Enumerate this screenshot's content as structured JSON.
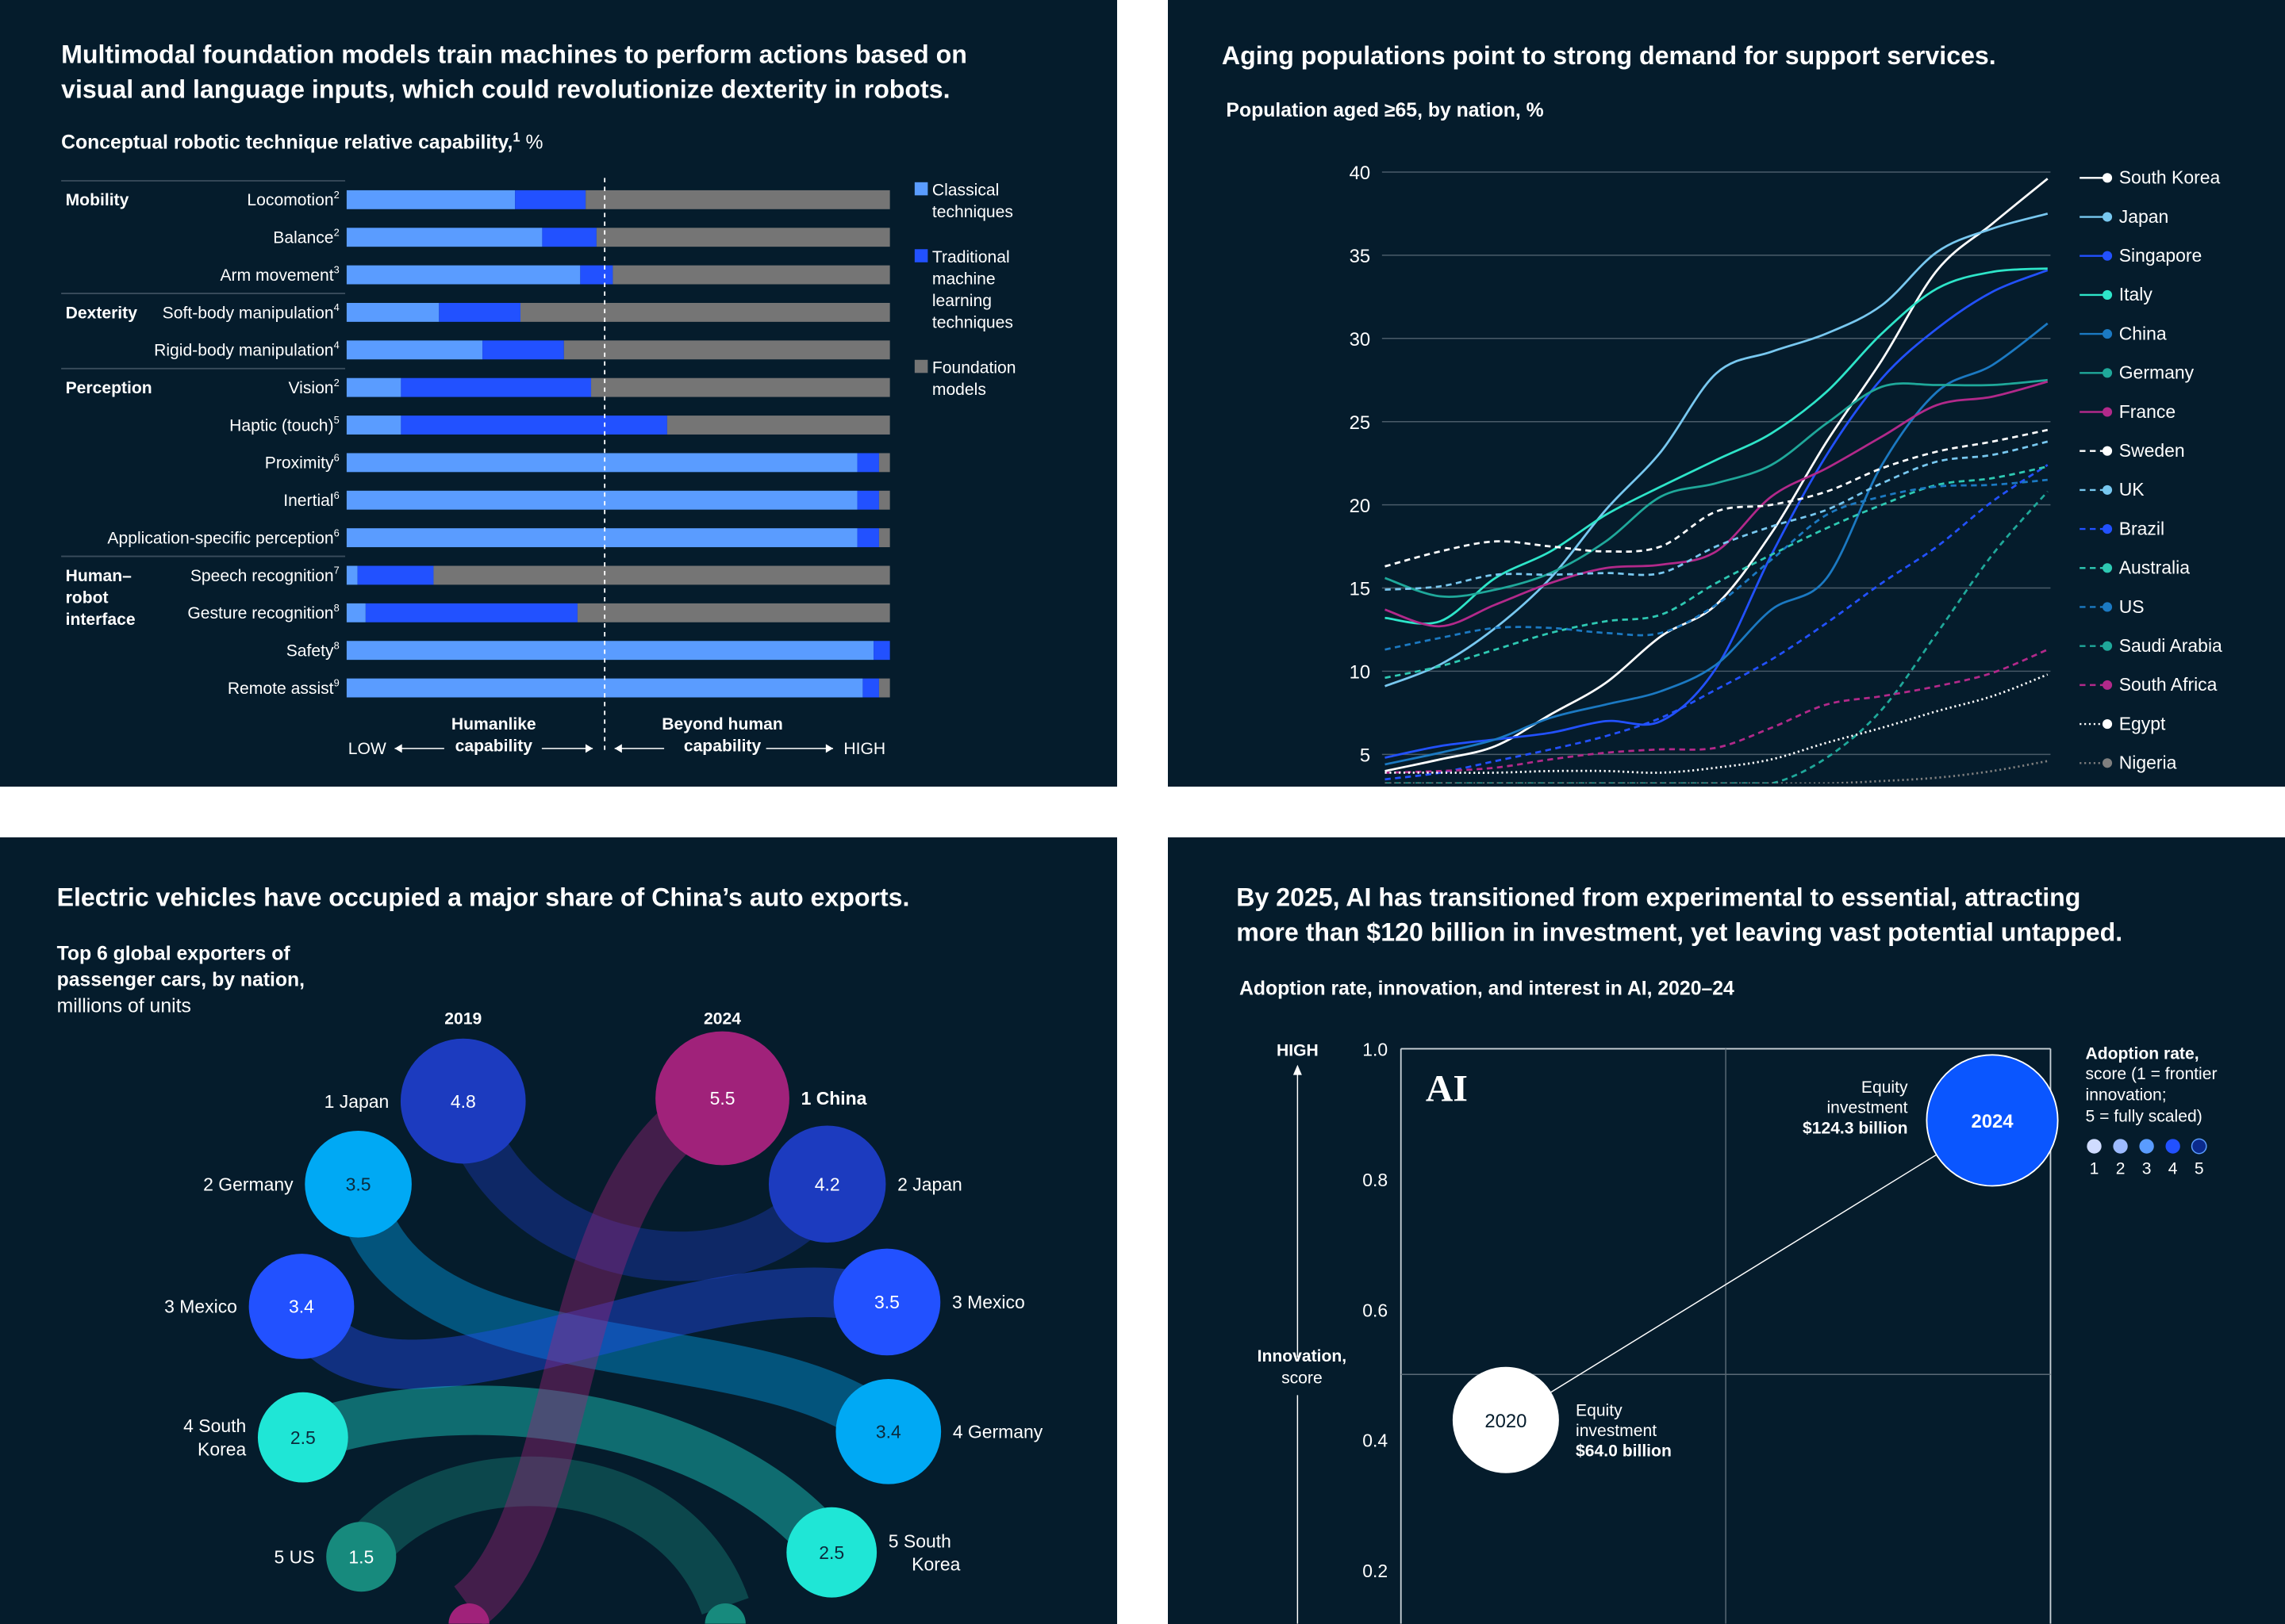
{
  "colors": {
    "background": "#051c2c",
    "classical": "#5a9cff",
    "traditional_ml": "#2251ff",
    "foundation": "#757575"
  },
  "chart_data": [
    {
      "type": "bar",
      "stacked": true,
      "orientation": "horizontal",
      "title": "Multimodal foundation models train machines to perform actions based on visual and language inputs, which could revolutionize dexterity in robots.",
      "title_lines": [
        "Multimodal foundation models train machines to perform actions based on",
        "visual and language inputs, which could revolutionize dexterity in robots."
      ],
      "subtitle": "Conceptual robotic technique relative capability,",
      "subtitle_note": "1",
      "subtitle_unit": " %",
      "legend": [
        {
          "key": "classical",
          "lines": [
            "Classical",
            "techniques"
          ]
        },
        {
          "key": "traditional_ml",
          "lines": [
            "Traditional",
            "machine",
            "learning",
            "techniques"
          ]
        },
        {
          "key": "foundation",
          "lines": [
            "Foundation",
            "models"
          ]
        }
      ],
      "groups": [
        {
          "name": "Mobility",
          "lines": [
            "Mobility"
          ]
        },
        {
          "name": "Dexterity",
          "lines": [
            "Dexterity"
          ]
        },
        {
          "name": "Perception",
          "lines": [
            "Perception"
          ]
        },
        {
          "name": "Human–robot interface",
          "lines": [
            "Human–",
            "robot",
            "interface"
          ]
        }
      ],
      "rows": [
        {
          "group": "Mobility",
          "label": "Locomotion",
          "note": "2",
          "classical": 31,
          "traditional_ml": 13,
          "foundation": 56
        },
        {
          "group": "Mobility",
          "label": "Balance",
          "note": "2",
          "classical": 36,
          "traditional_ml": 10,
          "foundation": 54
        },
        {
          "group": "Mobility",
          "label": "Arm movement",
          "note": "3",
          "classical": 43,
          "traditional_ml": 6,
          "foundation": 51
        },
        {
          "group": "Dexterity",
          "label": "Soft-body manipulation",
          "note": "4",
          "classical": 17,
          "traditional_ml": 15,
          "foundation": 68
        },
        {
          "group": "Dexterity",
          "label": "Rigid-body manipulation",
          "note": "4",
          "classical": 25,
          "traditional_ml": 15,
          "foundation": 60
        },
        {
          "group": "Perception",
          "label": "Vision",
          "note": "2",
          "classical": 10,
          "traditional_ml": 35,
          "foundation": 55
        },
        {
          "group": "Perception",
          "label": "Haptic (touch)",
          "note": "5",
          "classical": 10,
          "traditional_ml": 49,
          "foundation": 41
        },
        {
          "group": "Perception",
          "label": "Proximity",
          "note": "6",
          "classical": 94,
          "traditional_ml": 4,
          "foundation": 2
        },
        {
          "group": "Perception",
          "label": "Inertial",
          "note": "6",
          "classical": 94,
          "traditional_ml": 4,
          "foundation": 2
        },
        {
          "group": "Perception",
          "label": "Application-specific perception",
          "note": "6",
          "classical": 94,
          "traditional_ml": 4,
          "foundation": 2
        },
        {
          "group": "Human–robot interface",
          "label": "Speech recognition",
          "note": "7",
          "classical": 2,
          "traditional_ml": 14,
          "foundation": 84
        },
        {
          "group": "Human–robot interface",
          "label": "Gesture recognition",
          "note": "8",
          "classical": 3.5,
          "traditional_ml": 39,
          "foundation": 57.5
        },
        {
          "group": "Human–robot interface",
          "label": "Safety",
          "note": "8",
          "classical": 97,
          "traditional_ml": 3,
          "foundation": 0
        },
        {
          "group": "Human–robot interface",
          "label": "Remote assist",
          "note": "9",
          "classical": 95,
          "traditional_ml": 3,
          "foundation": 2
        }
      ],
      "humanlike_threshold": 47.5,
      "axis": {
        "low": "LOW",
        "high": "HIGH",
        "left_label": [
          "Humanlike",
          "capability"
        ],
        "right_label": [
          "Beyond human",
          "capability"
        ]
      },
      "xlim": [
        0,
        100
      ]
    },
    {
      "type": "line",
      "title": "Aging populations point to strong demand for support services.",
      "subtitle": "Population aged ≥65, by nation, %",
      "ylim": [
        3,
        40
      ],
      "yticks": [
        5,
        10,
        15,
        20,
        25,
        30,
        35,
        40
      ],
      "grid": true,
      "legend_position": "right",
      "series": [
        {
          "name": "South Korea",
          "color": "#ffffff",
          "dash": "solid",
          "values": [
            4.0,
            4.7,
            5.5,
            7.4,
            9.3,
            12.1,
            14.0,
            18.3,
            23.8,
            28.7,
            34.1,
            36.9,
            39.6
          ]
        },
        {
          "name": "Japan",
          "color": "#78c8f0",
          "dash": "solid",
          "values": [
            9.1,
            10.4,
            12.6,
            15.6,
            19.7,
            23.2,
            27.9,
            29.2,
            30.3,
            32.0,
            35.2,
            36.6,
            37.5
          ]
        },
        {
          "name": "Singapore",
          "color": "#2251ff",
          "dash": "solid",
          "values": [
            4.8,
            5.5,
            5.9,
            6.3,
            7.0,
            7.0,
            10.2,
            17.0,
            23.0,
            27.6,
            30.6,
            32.8,
            34.1
          ]
        },
        {
          "name": "Italy",
          "color": "#2ee5c9",
          "dash": "solid",
          "values": [
            13.2,
            13.0,
            15.6,
            17.2,
            19.4,
            21.1,
            22.7,
            24.3,
            26.8,
            30.3,
            33.0,
            34.0,
            34.2
          ]
        },
        {
          "name": "China",
          "color": "#1b79c2",
          "dash": "solid",
          "values": [
            4.4,
            5.1,
            5.9,
            7.2,
            8.0,
            8.8,
            10.4,
            13.7,
            15.6,
            22.4,
            26.8,
            28.4,
            30.9
          ]
        },
        {
          "name": "Germany",
          "color": "#1fa89a",
          "dash": "solid",
          "values": [
            15.6,
            14.5,
            14.9,
            15.9,
            17.8,
            20.5,
            21.3,
            22.4,
            24.9,
            27.1,
            27.2,
            27.2,
            27.5
          ]
        },
        {
          "name": "France",
          "color": "#b2298a",
          "dash": "solid",
          "values": [
            13.7,
            12.7,
            14.0,
            15.3,
            16.2,
            16.4,
            17.2,
            20.5,
            22.2,
            24.1,
            26.0,
            26.5,
            27.4
          ]
        },
        {
          "name": "Sweden",
          "color": "#ffffff",
          "dash": "dashed",
          "values": [
            16.3,
            17.2,
            17.8,
            17.5,
            17.2,
            17.5,
            19.6,
            20.0,
            20.8,
            22.2,
            23.2,
            23.8,
            24.5
          ]
        },
        {
          "name": "UK",
          "color": "#78c8f0",
          "dash": "dashed",
          "values": [
            14.9,
            15.1,
            15.8,
            15.8,
            15.9,
            15.9,
            17.5,
            18.7,
            19.7,
            21.3,
            22.6,
            23.0,
            23.8
          ]
        },
        {
          "name": "Brazil",
          "color": "#2251ff",
          "dash": "dashed",
          "values": [
            3.5,
            3.9,
            4.6,
            5.3,
            6.1,
            7.2,
            8.9,
            10.7,
            12.9,
            15.3,
            17.5,
            20.2,
            22.4
          ]
        },
        {
          "name": "Australia",
          "color": "#2ec9b3",
          "dash": "dashed",
          "values": [
            9.6,
            10.3,
            11.3,
            12.3,
            13.0,
            13.4,
            15.3,
            17.0,
            18.6,
            20.0,
            21.2,
            21.6,
            22.3
          ]
        },
        {
          "name": "US",
          "color": "#1b79c2",
          "dash": "dashed",
          "values": [
            11.3,
            12.0,
            12.6,
            12.6,
            12.3,
            12.3,
            14.0,
            16.7,
            19.4,
            20.5,
            21.1,
            21.2,
            21.5
          ]
        },
        {
          "name": "Saudi Arabia",
          "color": "#1fa89a",
          "dash": "dashed",
          "values": [
            2.5,
            2.6,
            2.7,
            2.8,
            2.8,
            2.8,
            2.9,
            3.1,
            4.8,
            7.7,
            12.3,
            17.0,
            20.8
          ]
        },
        {
          "name": "South Africa",
          "color": "#b2298a",
          "dash": "dashed",
          "values": [
            3.9,
            4.0,
            4.2,
            4.7,
            5.1,
            5.3,
            5.4,
            6.6,
            8.0,
            8.5,
            9.1,
            9.9,
            11.3
          ]
        },
        {
          "name": "Egypt",
          "color": "#ffffff",
          "dash": "dotted",
          "values": [
            3.9,
            3.9,
            3.9,
            4.0,
            4.0,
            3.9,
            4.2,
            4.7,
            5.7,
            6.6,
            7.6,
            8.5,
            9.8
          ]
        },
        {
          "name": "Nigeria",
          "color": "#7f7f7f",
          "dash": "dotted",
          "values": [
            2.9,
            2.9,
            2.9,
            3.0,
            3.0,
            3.0,
            3.0,
            3.1,
            3.2,
            3.4,
            3.6,
            4.0,
            4.6
          ]
        }
      ]
    },
    {
      "type": "bump",
      "title": "Electric vehicles have occupied a major share of China’s auto exports.",
      "subtitle_lines": [
        "Top 6 global exporters of",
        "passenger cars, by nation,"
      ],
      "unit": "millions of units",
      "years": [
        "2019",
        "2024"
      ],
      "country_colors": {
        "Japan": "#1c3bbf",
        "Germany": "#00a9f4",
        "Mexico": "#2251ff",
        "South Korea": "#1fe6d6",
        "US": "#178a7d",
        "China": "#a0227a"
      },
      "ranking_2019": [
        {
          "rank": "1",
          "country": "Japan",
          "label_lines": [
            "1 Japan"
          ],
          "value": 4.8
        },
        {
          "rank": "2",
          "country": "Germany",
          "label_lines": [
            "2 Germany"
          ],
          "value": 3.5
        },
        {
          "rank": "3",
          "country": "Mexico",
          "label_lines": [
            "3 Mexico"
          ],
          "value": 3.4
        },
        {
          "rank": "4",
          "country": "South Korea",
          "label_lines": [
            "4 South",
            "Korea"
          ],
          "value": 2.5
        },
        {
          "rank": "5",
          "country": "US",
          "label_lines": [
            "5 US"
          ],
          "value": 1.5
        }
      ],
      "ranking_2024": [
        {
          "rank": "1",
          "country": "China",
          "label_lines": [
            "1 China"
          ],
          "value": 5.5
        },
        {
          "rank": "2",
          "country": "Japan",
          "label_lines": [
            "2 Japan"
          ],
          "value": 4.2
        },
        {
          "rank": "3",
          "country": "Mexico",
          "label_lines": [
            "3 Mexico"
          ],
          "value": 3.5
        },
        {
          "rank": "4",
          "country": "Germany",
          "label_lines": [
            "4 Germany"
          ],
          "value": 3.4
        },
        {
          "rank": "5",
          "country": "South Korea",
          "label_lines": [
            "5 South",
            "Korea"
          ],
          "value": 2.5
        }
      ]
    },
    {
      "type": "scatter",
      "title_lines": [
        "By 2025, AI has transitioned from experimental to essential, attracting",
        "more than $120 billion in investment, yet leaving vast potential untapped."
      ],
      "subtitle": "Adoption rate, innovation, and interest in AI, 2020–24",
      "panel_label": "AI",
      "ylabel": [
        "Innovation,",
        "score"
      ],
      "y_high_label": "HIGH",
      "ylim": [
        0,
        1.0
      ],
      "yticks": [
        "1.0",
        "0.8",
        "0.6",
        "0.4",
        "0.2"
      ],
      "legend": {
        "title": "Adoption rate,",
        "lines": [
          "score (1 = frontier",
          "innovation;",
          "5 = fully scaled)"
        ],
        "scores": [
          "1",
          "2",
          "3",
          "4",
          "5"
        ],
        "colors": [
          "#d0dcff",
          "#9dbbff",
          "#5a9cff",
          "#2251ff",
          "#0b2a8c"
        ]
      },
      "points": [
        {
          "year": "2020",
          "innovation": 0.43,
          "adoption_score": 1,
          "label_lines": [
            "Equity",
            "investment"
          ],
          "investment": "$64.0 billion"
        },
        {
          "year": "2024",
          "innovation": 0.89,
          "adoption_score": 4,
          "label_lines": [
            "Equity",
            "investment"
          ],
          "investment": "$124.3 billion"
        }
      ]
    }
  ]
}
